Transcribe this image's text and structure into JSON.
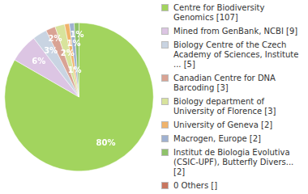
{
  "chart_data": {
    "type": "pie",
    "categories": [
      "Centre for Biodiversity Genomics [107]",
      "Mined from GenBank, NCBI [9]",
      "Biology Centre of the Czech Academy of Sciences, Institute ... [5]",
      "Canadian Centre for DNA Barcoding [3]",
      "Biology department of University of Florence [3]",
      "University of Geneva [2]",
      "Macrogen, Europe [2]",
      "Institut de Biologia Evolutiva (CSIC-UPF), Butterfly Divers... [2]",
      "0 Others []"
    ],
    "values": [
      80,
      6,
      3,
      2,
      2,
      1,
      1,
      1,
      0
    ],
    "value_labels": [
      "80%",
      "6%",
      "3%",
      "2%",
      "2%",
      "1%",
      "1%",
      "1%",
      null
    ],
    "colors": [
      "#a2d45e",
      "#dcc5e3",
      "#c9d4e2",
      "#d9a394",
      "#d8e39c",
      "#f0b36b",
      "#9fb1d1",
      "#8fc26a",
      "#c8765f"
    ],
    "data_labels": true,
    "legend": "right"
  }
}
